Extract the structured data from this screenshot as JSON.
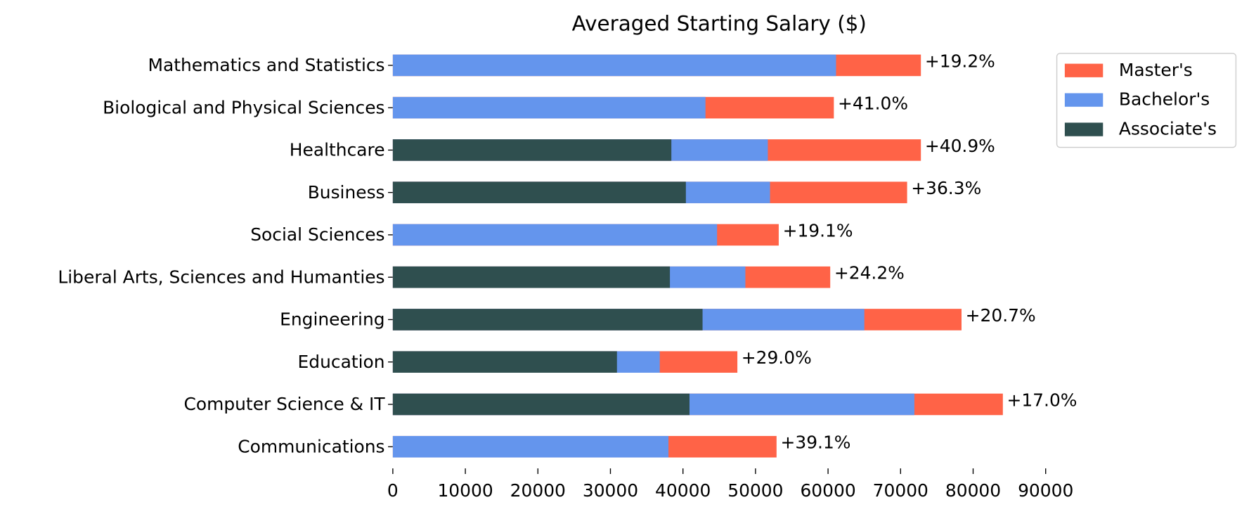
{
  "chart_data": {
    "type": "bar",
    "orientation": "horizontal",
    "barmode": "overlay",
    "title": "Averaged Starting Salary ($)",
    "categories": [
      "Mathematics and Statistics",
      "Biological and Physical Sciences",
      "Healthcare",
      "Business",
      "Social Sciences",
      "Liberal Arts, Sciences and Humanties",
      "Engineering",
      "Education",
      "Computer Science & IT",
      "Communications"
    ],
    "series": [
      {
        "name": "Master's",
        "color": "#ff6347",
        "values": [
          72800,
          60800,
          72800,
          70900,
          53200,
          60300,
          78400,
          47500,
          84100,
          52900
        ]
      },
      {
        "name": "Bachelor's",
        "color": "#6495ed",
        "values": [
          61100,
          43100,
          51700,
          52000,
          44700,
          48600,
          65000,
          36800,
          71900,
          38000
        ]
      },
      {
        "name": "Associate's",
        "color": "#2f4f4f",
        "values": [
          null,
          null,
          38400,
          40400,
          null,
          38200,
          42700,
          30900,
          40900,
          null
        ]
      }
    ],
    "annotations": [
      "+19.2%",
      "+41.0%",
      "+40.9%",
      "+36.3%",
      "+19.1%",
      "+24.2%",
      "+20.7%",
      "+29.0%",
      "+17.0%",
      "+39.1%"
    ],
    "xlim": [
      0,
      90000
    ],
    "xticks": [
      0,
      10000,
      20000,
      30000,
      40000,
      50000,
      60000,
      70000,
      80000,
      90000
    ],
    "legend": "upper right"
  }
}
